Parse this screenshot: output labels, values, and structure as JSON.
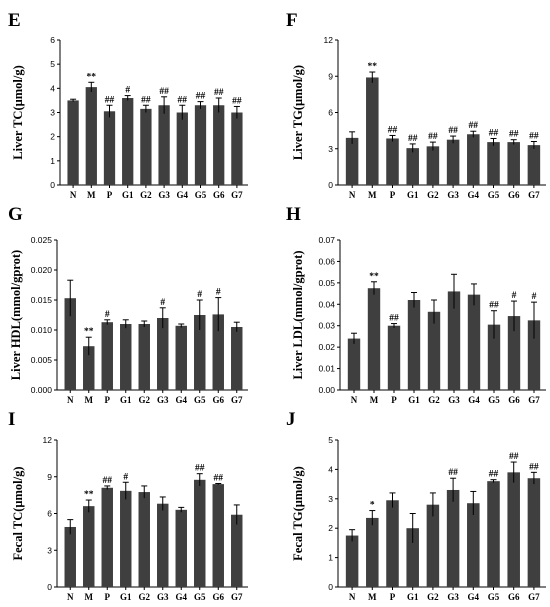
{
  "chart_data": [
    {
      "type": "bar",
      "panel": "E",
      "ylabel": "Liver TC(μmol/g)",
      "categories": [
        "N",
        "M",
        "P",
        "G1",
        "G2",
        "G3",
        "G4",
        "G5",
        "G6",
        "G7"
      ],
      "values": [
        3.5,
        4.05,
        3.05,
        3.6,
        3.15,
        3.3,
        3.0,
        3.3,
        3.3,
        3.0
      ],
      "errors": [
        0.05,
        0.2,
        0.25,
        0.1,
        0.15,
        0.35,
        0.3,
        0.15,
        0.3,
        0.25
      ],
      "significance": [
        "",
        "**",
        "##",
        "#",
        "##",
        "##",
        "##",
        "##",
        "##",
        "##"
      ],
      "ylim": [
        0,
        6
      ],
      "yticks": [
        0,
        1,
        2,
        3,
        4,
        5,
        6
      ],
      "ytick_labels": [
        "0",
        "1",
        "2",
        "3",
        "4",
        "5",
        "6"
      ]
    },
    {
      "type": "bar",
      "panel": "F",
      "ylabel": "Liver TG(μmol/g)",
      "categories": [
        "N",
        "M",
        "P",
        "G1",
        "G2",
        "G3",
        "G4",
        "G5",
        "G6",
        "G7"
      ],
      "values": [
        3.9,
        8.9,
        3.85,
        3.05,
        3.2,
        3.75,
        4.2,
        3.55,
        3.55,
        3.3
      ],
      "errors": [
        0.5,
        0.45,
        0.25,
        0.35,
        0.35,
        0.3,
        0.25,
        0.3,
        0.2,
        0.3
      ],
      "significance": [
        "",
        "**",
        "##",
        "##",
        "##",
        "##",
        "##",
        "##",
        "##",
        "##"
      ],
      "ylim": [
        0,
        12
      ],
      "yticks": [
        0,
        3,
        6,
        9,
        12
      ],
      "ytick_labels": [
        "0",
        "3",
        "6",
        "9",
        "12"
      ]
    },
    {
      "type": "bar",
      "panel": "G",
      "ylabel": "Liver HDL(mmol/gprot)",
      "categories": [
        "N",
        "M",
        "P",
        "G1",
        "G2",
        "G3",
        "G4",
        "G5",
        "G6",
        "G7"
      ],
      "values": [
        0.0153,
        0.0073,
        0.0113,
        0.011,
        0.011,
        0.012,
        0.0107,
        0.0125,
        0.0126,
        0.0105
      ],
      "errors": [
        0.003,
        0.0015,
        0.0004,
        0.0007,
        0.0005,
        0.0017,
        0.0003,
        0.0025,
        0.0028,
        0.0008
      ],
      "significance": [
        "",
        "**",
        "#",
        "",
        "",
        "#",
        "",
        "#",
        "#",
        ""
      ],
      "ylim": [
        0,
        0.025
      ],
      "yticks": [
        0,
        0.005,
        0.01,
        0.015,
        0.02,
        0.025
      ],
      "ytick_labels": [
        "0.000",
        "0.005",
        "0.010",
        "0.015",
        "0.020",
        "0.025"
      ]
    },
    {
      "type": "bar",
      "panel": "H",
      "ylabel": "Liver LDL(mmol/gprot)",
      "categories": [
        "N",
        "M",
        "P",
        "G1",
        "G2",
        "G3",
        "G4",
        "G5",
        "G6",
        "G7"
      ],
      "values": [
        0.024,
        0.0475,
        0.03,
        0.042,
        0.0365,
        0.046,
        0.0445,
        0.0305,
        0.0345,
        0.0325
      ],
      "errors": [
        0.0025,
        0.003,
        0.001,
        0.0035,
        0.0055,
        0.008,
        0.005,
        0.0065,
        0.007,
        0.0085
      ],
      "significance": [
        "",
        "**",
        "##",
        "",
        "",
        "",
        "",
        "##",
        "#",
        "#"
      ],
      "ylim": [
        0,
        0.07
      ],
      "yticks": [
        0,
        0.01,
        0.02,
        0.03,
        0.04,
        0.05,
        0.06,
        0.07
      ],
      "ytick_labels": [
        "0.00",
        "0.01",
        "0.02",
        "0.03",
        "0.04",
        "0.05",
        "0.06",
        "0.07"
      ]
    },
    {
      "type": "bar",
      "panel": "I",
      "ylabel": "Fecal TC(μmol/g)",
      "categories": [
        "N",
        "M",
        "P",
        "G1",
        "G2",
        "G3",
        "G4",
        "G5",
        "G6",
        "G7"
      ],
      "values": [
        4.9,
        6.6,
        8.1,
        7.85,
        7.75,
        6.8,
        6.3,
        8.75,
        8.4,
        5.9
      ],
      "errors": [
        0.6,
        0.5,
        0.15,
        0.7,
        0.5,
        0.55,
        0.2,
        0.5,
        0.05,
        0.8
      ],
      "significance": [
        "",
        "**",
        "##",
        "#",
        "",
        "",
        "",
        "##",
        "##",
        ""
      ],
      "ylim": [
        0,
        12
      ],
      "yticks": [
        0,
        3,
        6,
        9,
        12
      ],
      "ytick_labels": [
        "0",
        "3",
        "6",
        "9",
        "12"
      ]
    },
    {
      "type": "bar",
      "panel": "J",
      "ylabel": "Fecal TG(μmol/g)",
      "categories": [
        "N",
        "M",
        "P",
        "G1",
        "G2",
        "G3",
        "G4",
        "G5",
        "G6",
        "G7"
      ],
      "values": [
        1.75,
        2.35,
        2.95,
        2.0,
        2.8,
        3.3,
        2.85,
        3.6,
        3.9,
        3.7
      ],
      "errors": [
        0.2,
        0.25,
        0.25,
        0.5,
        0.4,
        0.4,
        0.4,
        0.05,
        0.35,
        0.2
      ],
      "significance": [
        "",
        "*",
        "",
        "",
        "",
        "##",
        "",
        "##",
        "##",
        "##"
      ],
      "ylim": [
        0,
        5
      ],
      "yticks": [
        0,
        1,
        2,
        3,
        4,
        5
      ],
      "ytick_labels": [
        "0",
        "1",
        "2",
        "3",
        "4",
        "5"
      ]
    }
  ]
}
